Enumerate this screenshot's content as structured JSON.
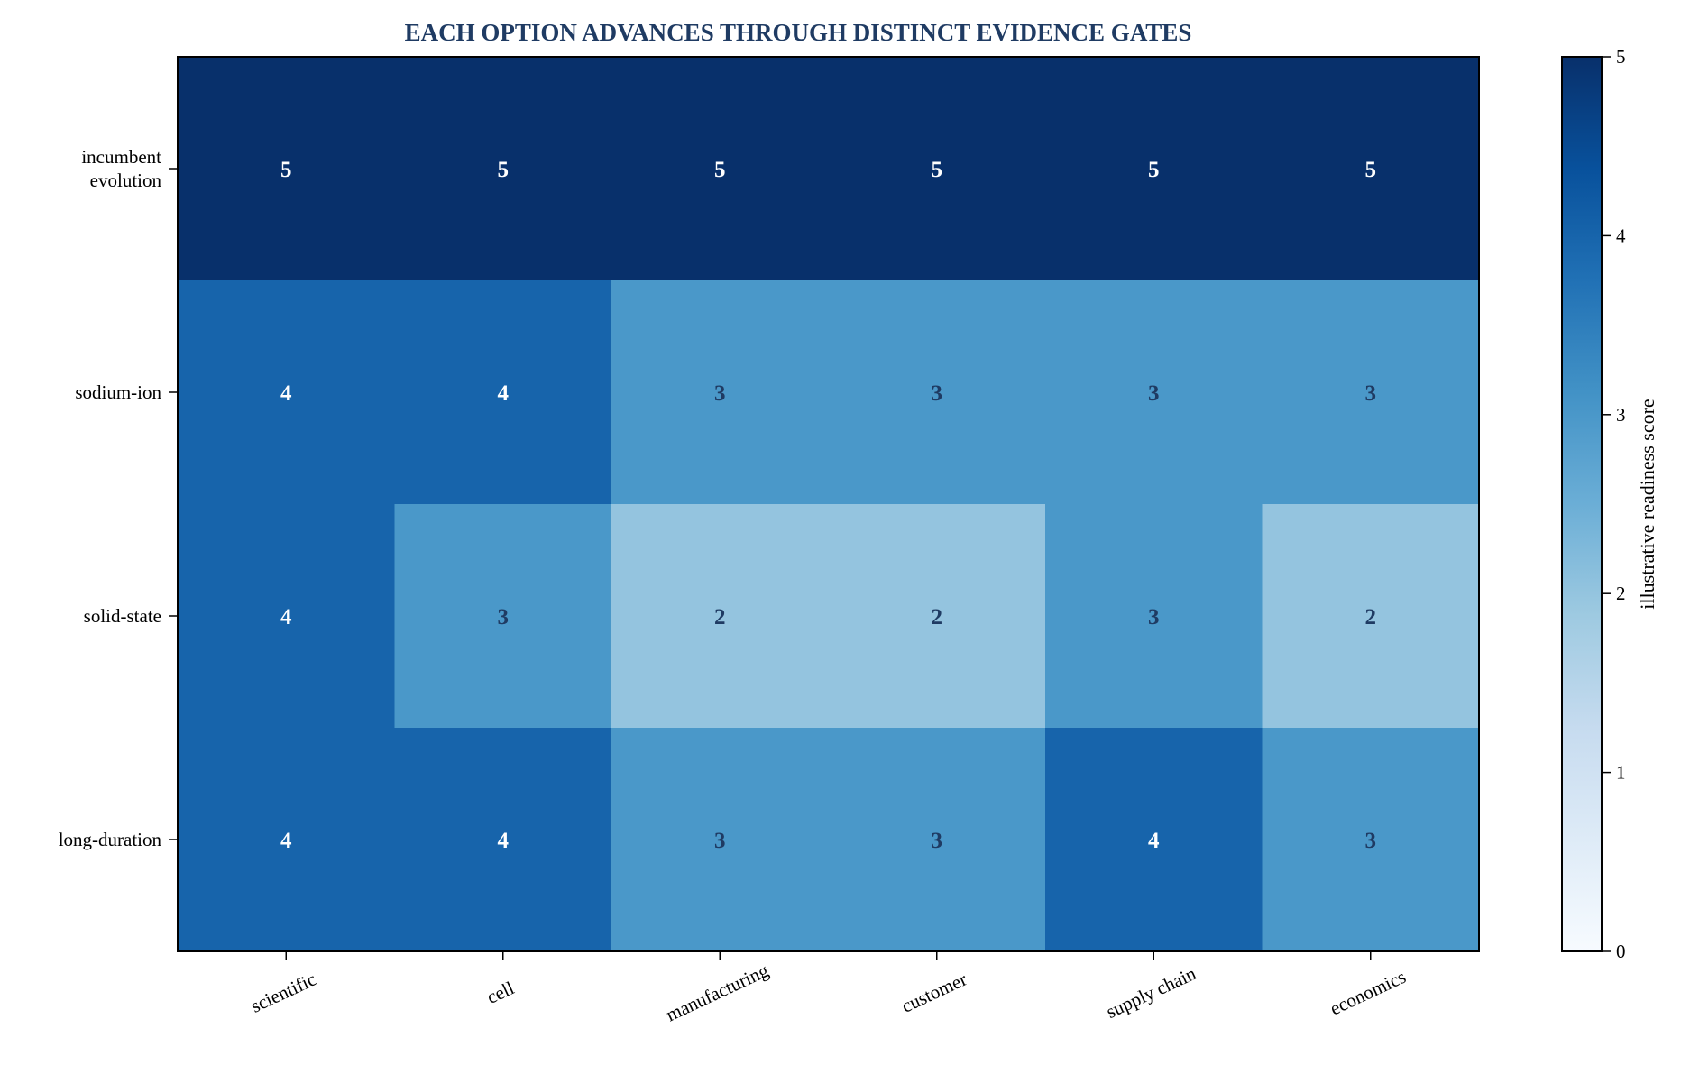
{
  "chart_data": {
    "type": "heatmap",
    "title": "EACH OPTION ADVANCES THROUGH DISTINCT EVIDENCE GATES",
    "x_categories": [
      "scientific",
      "cell",
      "manufacturing",
      "customer",
      "supply chain",
      "economics"
    ],
    "y_categories": [
      [
        "incumbent",
        "evolution"
      ],
      [
        "sodium-ion"
      ],
      [
        "solid-state"
      ],
      [
        "long-duration"
      ]
    ],
    "values": [
      [
        5,
        5,
        5,
        5,
        5,
        5
      ],
      [
        4,
        4,
        3,
        3,
        3,
        3
      ],
      [
        4,
        3,
        2,
        2,
        3,
        2
      ],
      [
        4,
        4,
        3,
        3,
        4,
        3
      ]
    ],
    "colorbar": {
      "label": "illustrative readiness score",
      "range": [
        0,
        5
      ],
      "ticks": [
        "0",
        "1",
        "2",
        "3",
        "4",
        "5"
      ],
      "colormap": "Blues"
    },
    "x_tick_rotation_deg": -25,
    "cell_labels_shown": true,
    "grid": false,
    "legend": "colorbar-right"
  }
}
